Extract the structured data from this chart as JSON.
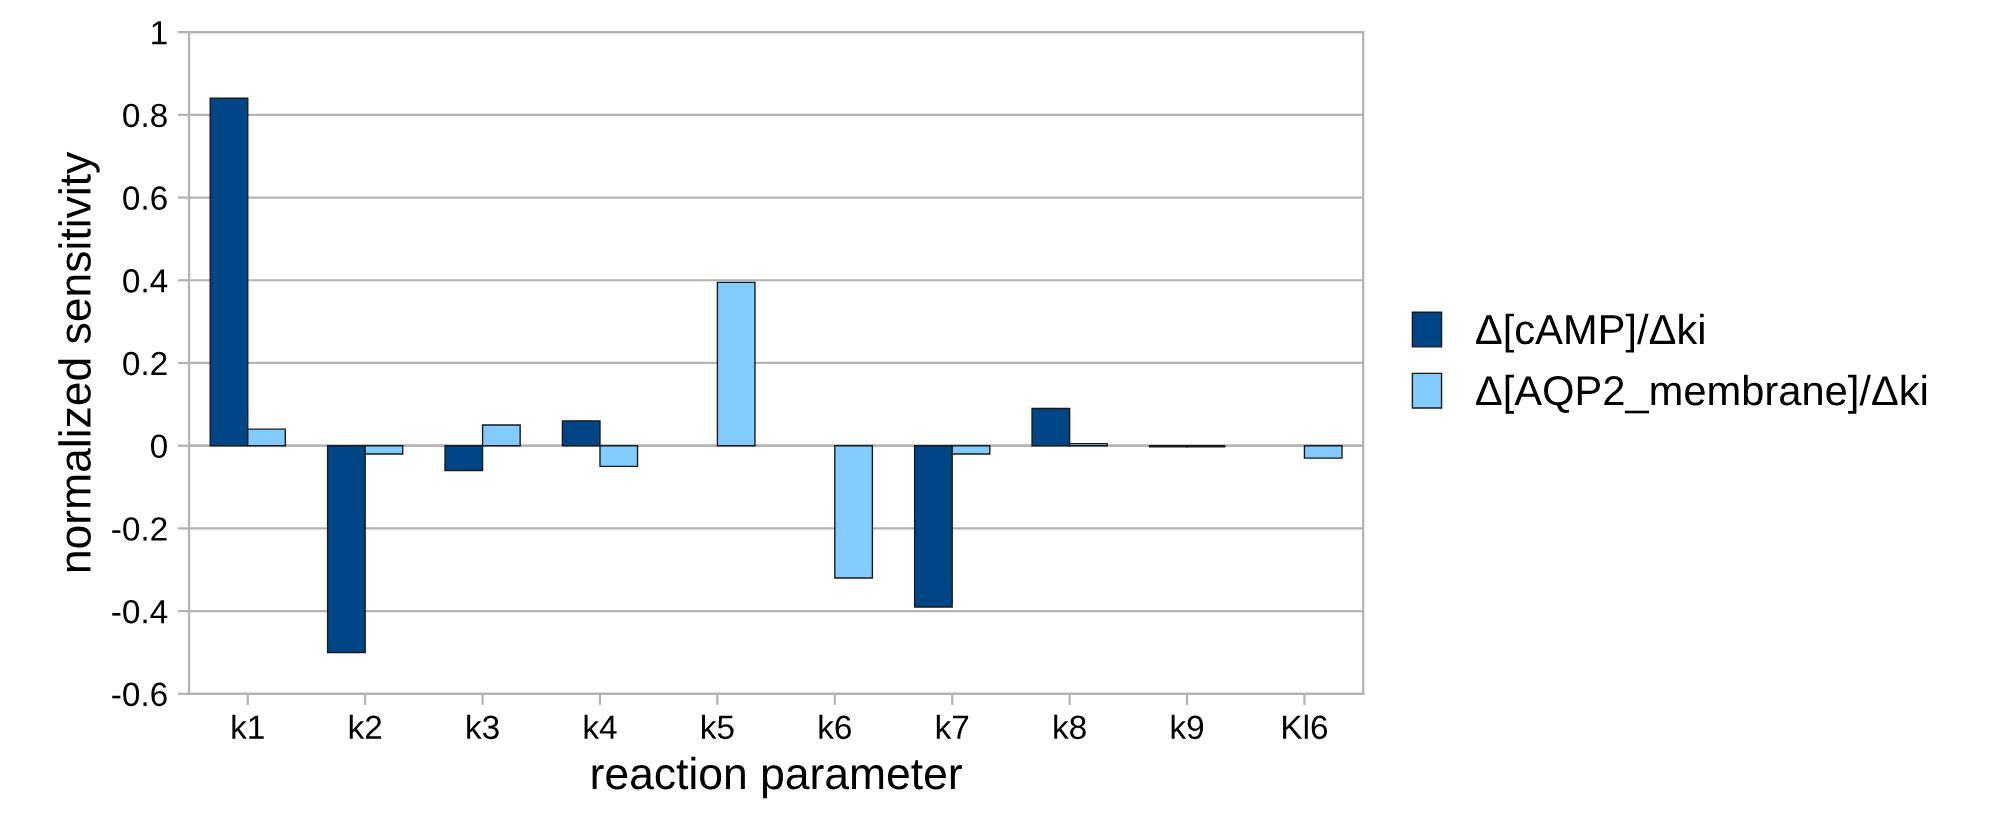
{
  "chart_data": {
    "type": "bar",
    "xlabel": "reaction parameter",
    "ylabel": "normalized sensitivity",
    "categories": [
      "k1",
      "k2",
      "k3",
      "k4",
      "k5",
      "k6",
      "k7",
      "k8",
      "k9",
      "Kl6"
    ],
    "series": [
      {
        "name": "Δ[cAMP]/Δki",
        "color": "#004586",
        "values": [
          0.84,
          -0.5,
          -0.06,
          0.06,
          null,
          null,
          -0.39,
          0.09,
          -0.003,
          null
        ]
      },
      {
        "name": "Δ[AQP2_membrane]/Δki",
        "color": "#83caff",
        "values": [
          0.04,
          -0.02,
          0.05,
          -0.05,
          0.395,
          -0.32,
          -0.02,
          0.005,
          -0.003,
          -0.03
        ]
      }
    ],
    "ylim": [
      -0.6,
      1
    ],
    "yticks": [
      -0.6,
      -0.4,
      -0.2,
      0,
      0.2,
      0.4,
      0.6,
      0.8,
      1
    ],
    "grid": "y",
    "legend": "right"
  }
}
